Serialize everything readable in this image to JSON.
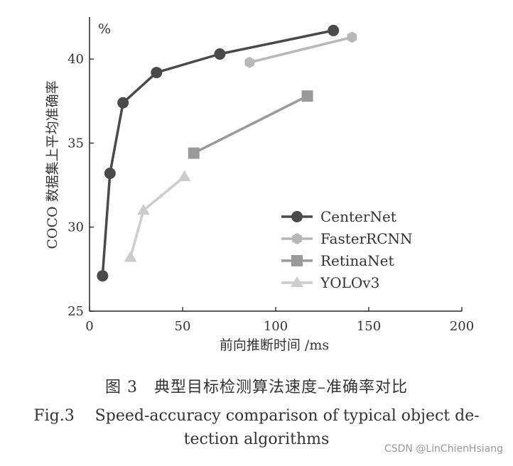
{
  "chart_data": {
    "type": "line",
    "unit_label": "%",
    "xlabel": "前向推断时间 /ms",
    "ylabel": "COCO 数据集上平均准确率",
    "xlim": [
      0,
      200
    ],
    "ylim": [
      25,
      42.5
    ],
    "xticks": [
      0,
      50,
      100,
      150,
      200
    ],
    "yticks": [
      25,
      30,
      35,
      40
    ],
    "grid": false,
    "legend_position": "lower-right",
    "series": [
      {
        "name": "CenterNet",
        "marker": "circle",
        "color": "#4a4a4a",
        "x": [
          7,
          11,
          18,
          36,
          70,
          131
        ],
        "y": [
          27.1,
          33.2,
          37.4,
          39.2,
          40.3,
          41.7
        ]
      },
      {
        "name": "FasterRCNN",
        "marker": "hexagon",
        "color": "#b8b8b8",
        "x": [
          86,
          141
        ],
        "y": [
          39.8,
          41.3
        ]
      },
      {
        "name": "RetinaNet",
        "marker": "square",
        "color": "#9a9a9a",
        "x": [
          56,
          117
        ],
        "y": [
          34.4,
          37.8
        ]
      },
      {
        "name": "YOLOv3",
        "marker": "triangle",
        "color": "#cccccc",
        "x": [
          22,
          29,
          51
        ],
        "y": [
          28.2,
          31.0,
          33.0
        ]
      }
    ]
  },
  "caption": {
    "cn": "图 3　典型目标检测算法速度–准确率对比",
    "en_line1": "Fig.3　 Speed-accuracy comparison of typical object de-",
    "en_line2": "tection algorithms"
  },
  "watermark": "CSDN @LinChienHsiang"
}
